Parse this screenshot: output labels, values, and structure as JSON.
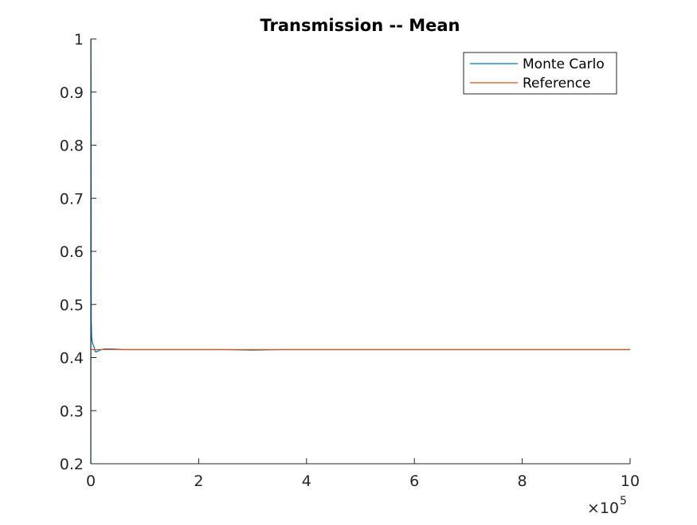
{
  "chart_data": {
    "type": "line",
    "title": "Transmission -- Mean",
    "xlabel": "",
    "ylabel": "",
    "xlim": [
      0,
      1000000
    ],
    "ylim": [
      0.2,
      1
    ],
    "x_exponent_label": "×10",
    "x_exponent_power": "5",
    "x_ticks": [
      0,
      200000,
      400000,
      600000,
      800000,
      1000000
    ],
    "x_tick_labels": [
      "0",
      "2",
      "4",
      "6",
      "8",
      "10"
    ],
    "y_ticks": [
      0.2,
      0.3,
      0.4,
      0.5,
      0.6,
      0.7,
      0.8,
      0.9,
      1
    ],
    "y_tick_labels": [
      "0.2",
      "0.3",
      "0.4",
      "0.5",
      "0.6",
      "0.7",
      "0.8",
      "0.9",
      "1"
    ],
    "grid": false,
    "legend_position": "top-right",
    "series": [
      {
        "name": "Monte Carlo",
        "color": "#0072BD",
        "x": [
          1,
          300,
          800,
          1500,
          2500,
          4000,
          6000,
          8000,
          10000,
          12000,
          15000,
          20000,
          25000,
          30000,
          40000,
          60000,
          80000,
          100000,
          150000,
          200000,
          250000,
          300000,
          350000,
          400000,
          500000,
          600000,
          700000,
          800000,
          900000,
          1000000
        ],
        "y": [
          0.2,
          1.0,
          0.47,
          0.44,
          0.43,
          0.425,
          0.42,
          0.412,
          0.41,
          0.412,
          0.413,
          0.415,
          0.416,
          0.416,
          0.416,
          0.415,
          0.415,
          0.415,
          0.415,
          0.415,
          0.415,
          0.414,
          0.415,
          0.415,
          0.415,
          0.415,
          0.415,
          0.415,
          0.415,
          0.415
        ]
      },
      {
        "name": "Reference",
        "color": "#D95319",
        "x": [
          0,
          1000000
        ],
        "y": [
          0.415,
          0.415
        ]
      }
    ]
  }
}
